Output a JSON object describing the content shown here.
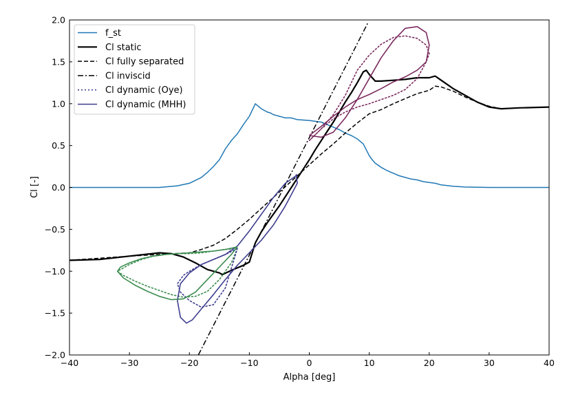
{
  "chart_data": {
    "type": "line",
    "title": "",
    "xlabel": "Alpha [deg]",
    "ylabel": "Cl [-]",
    "xlim": [
      -40,
      40
    ],
    "ylim": [
      -2.0,
      2.0
    ],
    "grid": false,
    "legend_position": "top-left",
    "x_ticks": [
      -40,
      -30,
      -20,
      -10,
      0,
      10,
      20,
      30,
      40
    ],
    "x_tick_labels": [
      "−40",
      "−30",
      "−20",
      "−10",
      "0",
      "10",
      "20",
      "30",
      "40"
    ],
    "y_ticks": [
      -2.0,
      -1.5,
      -1.0,
      -0.5,
      0.0,
      0.5,
      1.0,
      1.5,
      2.0
    ],
    "y_tick_labels": [
      "−2.0",
      "−1.5",
      "−1.0",
      "−0.5",
      "0.0",
      "0.5",
      "1.0",
      "1.5",
      "2.0"
    ],
    "series": [
      {
        "name": "f_st",
        "color": "#1f77b4",
        "style": "solid",
        "width": 1.5,
        "x": [
          -40,
          -30,
          -25,
          -22,
          -20,
          -18,
          -17,
          -16,
          -15,
          -14,
          -13,
          -12,
          -11,
          -10,
          -9,
          -8.5,
          -8,
          -7.5,
          -7,
          -6.5,
          -6,
          -5.5,
          -5,
          -4.5,
          -4,
          -3.5,
          -3,
          -2.5,
          -2,
          0,
          2,
          3,
          4,
          5,
          6,
          7,
          8,
          9,
          9.5,
          10,
          10.5,
          11,
          12,
          13,
          14,
          15,
          16,
          17,
          18,
          19,
          20,
          21,
          22,
          24,
          26,
          30,
          35,
          40
        ],
        "y": [
          0,
          0,
          0,
          0.02,
          0.05,
          0.12,
          0.18,
          0.25,
          0.33,
          0.46,
          0.56,
          0.64,
          0.75,
          0.85,
          1.0,
          0.97,
          0.94,
          0.92,
          0.9,
          0.89,
          0.87,
          0.86,
          0.85,
          0.84,
          0.83,
          0.83,
          0.83,
          0.82,
          0.81,
          0.8,
          0.78,
          0.75,
          0.72,
          0.69,
          0.65,
          0.62,
          0.58,
          0.52,
          0.45,
          0.38,
          0.33,
          0.29,
          0.24,
          0.2,
          0.17,
          0.14,
          0.12,
          0.1,
          0.09,
          0.07,
          0.06,
          0.05,
          0.03,
          0.015,
          0.005,
          0,
          0,
          0
        ]
      },
      {
        "name": "Cl static",
        "color": "#000000",
        "style": "solid",
        "width": 2.2,
        "x": [
          -40,
          -35,
          -30,
          -25,
          -23,
          -21,
          -19,
          -17,
          -15,
          -14.5,
          -13,
          -11,
          -10,
          -9,
          -8,
          -7,
          -5,
          -3,
          -1,
          0,
          1,
          2,
          3,
          4,
          5,
          6,
          7,
          8,
          9,
          9.5,
          10,
          11,
          12,
          14,
          16,
          18,
          20,
          21,
          22,
          24,
          26,
          28,
          30,
          32,
          35,
          40
        ],
        "y": [
          -0.87,
          -0.86,
          -0.82,
          -0.78,
          -0.79,
          -0.83,
          -0.9,
          -0.98,
          -1.02,
          -1.04,
          -0.99,
          -0.93,
          -0.89,
          -0.66,
          -0.53,
          -0.42,
          -0.22,
          0.0,
          0.22,
          0.33,
          0.45,
          0.56,
          0.67,
          0.78,
          0.9,
          1.02,
          1.13,
          1.25,
          1.38,
          1.4,
          1.35,
          1.27,
          1.27,
          1.28,
          1.29,
          1.31,
          1.31,
          1.33,
          1.28,
          1.18,
          1.1,
          1.02,
          0.96,
          0.94,
          0.95,
          0.96
        ]
      },
      {
        "name": "Cl fully separated",
        "color": "#000000",
        "style": "dashed",
        "width": 1.5,
        "x": [
          -40,
          -30,
          -25,
          -20,
          -18,
          -16,
          -14,
          -12,
          -10,
          -8,
          -6,
          -4,
          -2,
          0,
          2,
          4,
          6,
          8,
          10,
          12,
          14,
          16,
          18,
          20,
          21,
          22,
          24,
          26,
          28,
          30,
          32,
          35,
          40
        ],
        "y": [
          -0.87,
          -0.82,
          -0.8,
          -0.78,
          -0.74,
          -0.69,
          -0.61,
          -0.5,
          -0.38,
          -0.25,
          -0.12,
          0.01,
          0.14,
          0.27,
          0.4,
          0.52,
          0.65,
          0.77,
          0.88,
          0.93,
          1.0,
          1.06,
          1.12,
          1.16,
          1.21,
          1.2,
          1.15,
          1.08,
          1.02,
          0.97,
          0.94,
          0.95,
          0.96
        ]
      },
      {
        "name": "Cl inviscid",
        "color": "#000000",
        "style": "dashdot",
        "width": 1.5,
        "x": [
          -18.5,
          9.8
        ],
        "y": [
          -2.0,
          1.97
        ]
      },
      {
        "name": "Cl dynamic (Oye)",
        "color": "#7a2a5e",
        "style": "dotted",
        "width": 1.6,
        "x": [
          0,
          2,
          4,
          6,
          8,
          10,
          12,
          14,
          16,
          18,
          19.5,
          20,
          19.5,
          18,
          16,
          14,
          12,
          10,
          8,
          6,
          4,
          2,
          0
        ],
        "y": [
          0.56,
          0.7,
          0.87,
          1.1,
          1.4,
          1.58,
          1.71,
          1.79,
          1.81,
          1.78,
          1.7,
          1.6,
          1.5,
          1.3,
          1.17,
          1.1,
          1.05,
          1.0,
          0.96,
          0.9,
          0.82,
          0.7,
          0.56
        ]
      },
      {
        "name": "Cl dynamic (Oye)",
        "color": "#3a8c4e",
        "style": "dotted",
        "width": 1.6,
        "x": [
          -12,
          -14,
          -16,
          -18,
          -20,
          -22,
          -24,
          -26,
          -28,
          -30,
          -31,
          -32,
          -31,
          -29,
          -27,
          -25,
          -23,
          -21,
          -19,
          -17,
          -15,
          -13,
          -12
        ],
        "y": [
          -0.73,
          -0.74,
          -0.76,
          -0.78,
          -0.79,
          -0.79,
          -0.8,
          -0.82,
          -0.86,
          -0.92,
          -0.96,
          -1.0,
          -1.05,
          -1.12,
          -1.18,
          -1.23,
          -1.28,
          -1.31,
          -1.3,
          -1.24,
          -1.1,
          -0.9,
          -0.73
        ]
      },
      {
        "name": "Cl dynamic (Oye)",
        "color": "#3e3d8f",
        "style": "dotted",
        "width": 1.6,
        "x": [
          -12,
          -14,
          -16,
          -18,
          -20,
          -21,
          -22,
          -21.5,
          -20,
          -18,
          -16,
          -14,
          -12
        ],
        "y": [
          -0.73,
          -0.8,
          -0.86,
          -0.92,
          -1.0,
          -1.05,
          -1.15,
          -1.25,
          -1.35,
          -1.43,
          -1.4,
          -1.2,
          -0.73
        ]
      },
      {
        "name": "Cl dynamic (MHH)",
        "color": "#3e3d8f",
        "style": "solid",
        "width": 1.6,
        "x": [
          -2,
          -4,
          -6,
          -8,
          -10,
          -12,
          -14,
          -16,
          -18,
          -20,
          -21.5,
          -22,
          -21.5,
          -20.5,
          -19.5,
          -18,
          -16,
          -14,
          -12,
          -10,
          -8,
          -6,
          -4,
          -2,
          -2.2,
          -2
        ],
        "y": [
          0.15,
          0.05,
          -0.12,
          -0.32,
          -0.52,
          -0.7,
          -0.8,
          -0.86,
          -0.92,
          -1.02,
          -1.15,
          -1.35,
          -1.55,
          -1.62,
          -1.58,
          -1.45,
          -1.28,
          -1.1,
          -0.93,
          -0.78,
          -0.63,
          -0.45,
          -0.22,
          0.05,
          0.15,
          0.15
        ]
      },
      {
        "name": "Cl dynamic (MHH)",
        "color": "#7a2a5e",
        "style": "solid",
        "width": 1.6,
        "x": [
          0,
          2,
          4,
          6,
          8,
          10,
          12,
          14,
          16,
          18,
          19.5,
          20,
          19.5,
          18,
          16,
          14,
          12,
          10,
          8,
          6,
          4,
          2,
          0
        ],
        "y": [
          0.62,
          0.73,
          0.85,
          0.96,
          1.05,
          1.11,
          1.18,
          1.26,
          1.32,
          1.4,
          1.5,
          1.7,
          1.85,
          1.92,
          1.9,
          1.75,
          1.55,
          1.3,
          1.05,
          0.83,
          0.66,
          0.6,
          0.62
        ]
      },
      {
        "name": "Cl dynamic (MHH)",
        "color": "#3a8c4e",
        "style": "solid",
        "width": 1.6,
        "x": [
          -12,
          -14,
          -16,
          -18,
          -20,
          -22,
          -24,
          -26,
          -28,
          -30,
          -31.5,
          -32,
          -31,
          -29,
          -27,
          -25,
          -23,
          -21,
          -19,
          -17,
          -15,
          -13,
          -12
        ],
        "y": [
          -0.71,
          -0.74,
          -0.76,
          -0.77,
          -0.78,
          -0.79,
          -0.8,
          -0.82,
          -0.85,
          -0.9,
          -0.95,
          -1.0,
          -1.08,
          -1.17,
          -1.24,
          -1.3,
          -1.34,
          -1.33,
          -1.25,
          -1.1,
          -0.95,
          -0.8,
          -0.71
        ]
      }
    ],
    "legend": [
      {
        "label": "f_st",
        "color": "#1f77b4",
        "style": "solid",
        "width": 1.5
      },
      {
        "label": "Cl static",
        "color": "#000000",
        "style": "solid",
        "width": 2.2
      },
      {
        "label": "Cl fully separated",
        "color": "#000000",
        "style": "dashed",
        "width": 1.5
      },
      {
        "label": "Cl inviscid",
        "color": "#000000",
        "style": "dashdot",
        "width": 1.5
      },
      {
        "label": "Cl dynamic (Oye)",
        "color": "#3e3d8f",
        "style": "dotted",
        "width": 1.6
      },
      {
        "label": "Cl dynamic (MHH)",
        "color": "#3e3d8f",
        "style": "solid",
        "width": 1.6
      }
    ]
  }
}
